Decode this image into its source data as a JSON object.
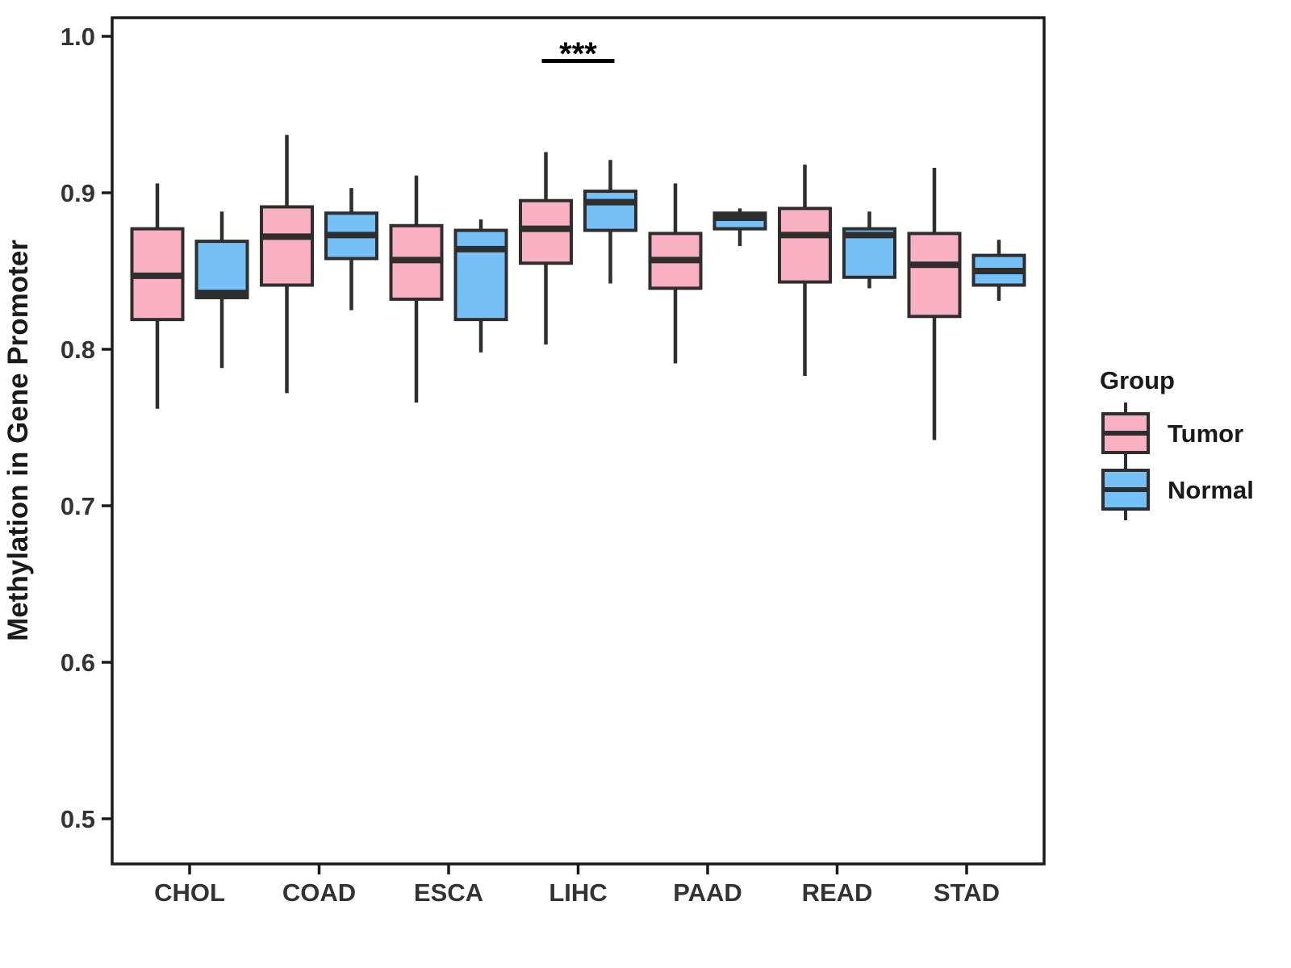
{
  "figure": {
    "background": "#FFFFFF"
  },
  "legend": {
    "title": "Group",
    "entries": [
      {
        "label": "Tumor",
        "color": "#FAB0C3"
      },
      {
        "label": "Normal",
        "color": "#74C0F7"
      }
    ]
  },
  "chart_data": {
    "type": "boxplot",
    "title": "",
    "xlabel": "",
    "ylabel": "Methylation in Gene Promoter",
    "ylim": [
      0.47,
      1.01
    ],
    "grid": false,
    "legend_position": "right",
    "yticks": [
      {
        "value": 1.0,
        "label": "1.0"
      },
      {
        "value": 0.9,
        "label": "0.9"
      },
      {
        "value": 0.8,
        "label": "0.8"
      },
      {
        "value": 0.7,
        "label": "0.7"
      },
      {
        "value": 0.6,
        "label": "0.6"
      },
      {
        "value": 0.5,
        "label": "0.5"
      }
    ],
    "categories": [
      "CHOL",
      "COAD",
      "ESCA",
      "LIHC",
      "PAAD",
      "READ",
      "STAD"
    ],
    "groups": [
      "Tumor",
      "Normal"
    ],
    "colors": {
      "Tumor": "#FAB0C3",
      "Normal": "#74C0F7"
    },
    "series": [
      {
        "name": "Tumor",
        "boxes": [
          {
            "category": "CHOL",
            "whisker_low": 0.762,
            "q1": 0.819,
            "median": 0.847,
            "q3": 0.877,
            "whisker_high": 0.906
          },
          {
            "category": "COAD",
            "whisker_low": 0.772,
            "q1": 0.841,
            "median": 0.872,
            "q3": 0.891,
            "whisker_high": 0.937
          },
          {
            "category": "ESCA",
            "whisker_low": 0.766,
            "q1": 0.832,
            "median": 0.857,
            "q3": 0.879,
            "whisker_high": 0.911
          },
          {
            "category": "LIHC",
            "whisker_low": 0.803,
            "q1": 0.855,
            "median": 0.877,
            "q3": 0.895,
            "whisker_high": 0.926
          },
          {
            "category": "PAAD",
            "whisker_low": 0.791,
            "q1": 0.839,
            "median": 0.857,
            "q3": 0.874,
            "whisker_high": 0.906
          },
          {
            "category": "READ",
            "whisker_low": 0.783,
            "q1": 0.843,
            "median": 0.873,
            "q3": 0.89,
            "whisker_high": 0.918
          },
          {
            "category": "STAD",
            "whisker_low": 0.742,
            "q1": 0.821,
            "median": 0.854,
            "q3": 0.874,
            "whisker_high": 0.916
          }
        ]
      },
      {
        "name": "Normal",
        "boxes": [
          {
            "category": "CHOL",
            "whisker_low": 0.788,
            "q1": 0.833,
            "median": 0.836,
            "q3": 0.869,
            "whisker_high": 0.888
          },
          {
            "category": "COAD",
            "whisker_low": 0.825,
            "q1": 0.858,
            "median": 0.873,
            "q3": 0.887,
            "whisker_high": 0.903
          },
          {
            "category": "ESCA",
            "whisker_low": 0.798,
            "q1": 0.819,
            "median": 0.864,
            "q3": 0.876,
            "whisker_high": 0.883
          },
          {
            "category": "LIHC",
            "whisker_low": 0.842,
            "q1": 0.876,
            "median": 0.894,
            "q3": 0.901,
            "whisker_high": 0.921
          },
          {
            "category": "PAAD",
            "whisker_low": 0.866,
            "q1": 0.877,
            "median": 0.884,
            "q3": 0.887,
            "whisker_high": 0.89
          },
          {
            "category": "READ",
            "whisker_low": 0.839,
            "q1": 0.846,
            "median": 0.873,
            "q3": 0.877,
            "whisker_high": 0.888
          },
          {
            "category": "STAD",
            "whisker_low": 0.831,
            "q1": 0.841,
            "median": 0.85,
            "q3": 0.86,
            "whisker_high": 0.87
          }
        ]
      }
    ],
    "significance": [
      {
        "category": "LIHC",
        "label": "***"
      }
    ]
  }
}
